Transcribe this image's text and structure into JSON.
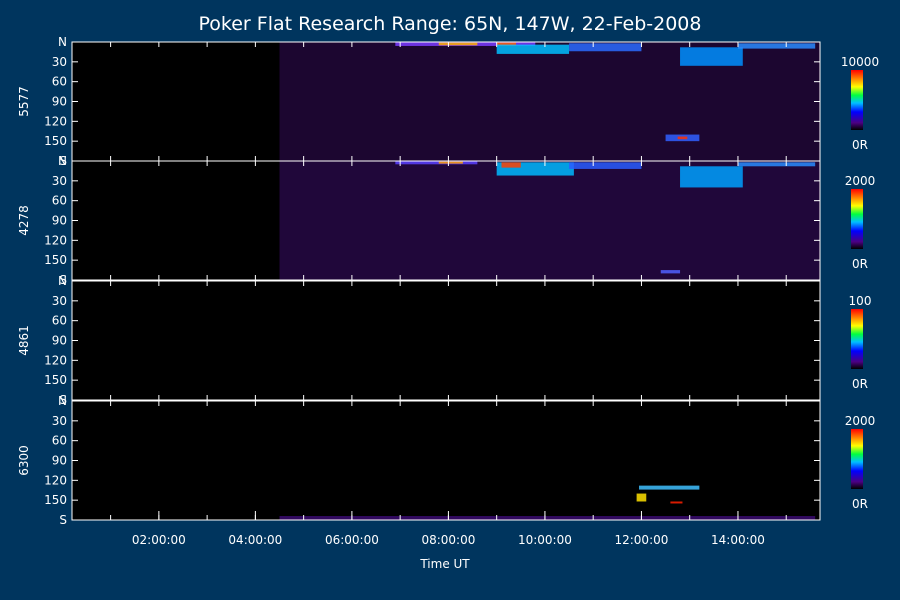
{
  "chart_data": {
    "type": "heatmap",
    "title": "Poker Flat Research Range: 65N, 147W, 22-Feb-2008",
    "xlabel": "Time UT",
    "x_unit": "hours UT",
    "x_range": [
      0.2,
      15.7
    ],
    "x_ticks": [
      {
        "value": 2,
        "label": "02:00:00"
      },
      {
        "value": 4,
        "label": "04:00:00"
      },
      {
        "value": 6,
        "label": "06:00:00"
      },
      {
        "value": 8,
        "label": "08:00:00"
      },
      {
        "value": 10,
        "label": "10:00:00"
      },
      {
        "value": 12,
        "label": "12:00:00"
      },
      {
        "value": 14,
        "label": "14:00:00"
      }
    ],
    "y_range": [
      0,
      180
    ],
    "y_ticks": [
      {
        "value": 0,
        "label": "N"
      },
      {
        "value": 30,
        "label": "30"
      },
      {
        "value": 60,
        "label": "60"
      },
      {
        "value": 90,
        "label": "90"
      },
      {
        "value": 120,
        "label": "120"
      },
      {
        "value": 150,
        "label": "150"
      },
      {
        "value": 180,
        "label": "S"
      }
    ],
    "data_start_hour": 4.5,
    "panels": [
      {
        "wavelength": "5577",
        "cbar_max": "10000",
        "cbar_min": "0R",
        "background": "#1c0630",
        "features": [
          {
            "t0": 6.9,
            "t1": 9.8,
            "a0": 0,
            "a1": 6,
            "color": "#7a3cff"
          },
          {
            "t0": 7.8,
            "t1": 8.6,
            "a0": 1,
            "a1": 5,
            "color": "#ffb000"
          },
          {
            "t0": 9.0,
            "t1": 9.4,
            "a0": 1,
            "a1": 6,
            "color": "#ff6000"
          },
          {
            "t0": 9.0,
            "t1": 10.5,
            "a0": 4,
            "a1": 18,
            "color": "#00c0ff"
          },
          {
            "t0": 10.5,
            "t1": 12.0,
            "a0": 2,
            "a1": 14,
            "color": "#2a6cff"
          },
          {
            "t0": 12.8,
            "t1": 14.1,
            "a0": 8,
            "a1": 36,
            "color": "#0090ff"
          },
          {
            "t0": 14.0,
            "t1": 15.6,
            "a0": 2,
            "a1": 10,
            "color": "#2a8cff"
          },
          {
            "t0": 12.5,
            "t1": 13.2,
            "a0": 140,
            "a1": 150,
            "color": "#3060ff"
          },
          {
            "t0": 12.75,
            "t1": 12.95,
            "a0": 143,
            "a1": 147,
            "color": "#ff3000"
          }
        ]
      },
      {
        "wavelength": "4278",
        "cbar_max": "2000",
        "cbar_min": "0R",
        "background": "#20073a",
        "features": [
          {
            "t0": 6.9,
            "t1": 8.6,
            "a0": 0,
            "a1": 5,
            "color": "#5a40ff"
          },
          {
            "t0": 7.8,
            "t1": 8.3,
            "a0": 1,
            "a1": 4,
            "color": "#ffa000"
          },
          {
            "t0": 9.0,
            "t1": 10.6,
            "a0": 2,
            "a1": 22,
            "color": "#00b8ff"
          },
          {
            "t0": 9.1,
            "t1": 9.5,
            "a0": 2,
            "a1": 10,
            "color": "#ff4000"
          },
          {
            "t0": 10.5,
            "t1": 12.0,
            "a0": 2,
            "a1": 12,
            "color": "#2a5cff"
          },
          {
            "t0": 12.8,
            "t1": 14.1,
            "a0": 8,
            "a1": 40,
            "color": "#00a0ff"
          },
          {
            "t0": 14.0,
            "t1": 15.6,
            "a0": 2,
            "a1": 8,
            "color": "#2a8cff"
          },
          {
            "t0": 12.4,
            "t1": 12.8,
            "a0": 165,
            "a1": 170,
            "color": "#5060ff"
          }
        ]
      },
      {
        "wavelength": "4861",
        "cbar_max": "100",
        "cbar_min": "0R",
        "background": "#000000",
        "features": []
      },
      {
        "wavelength": "6300",
        "cbar_max": "2000",
        "cbar_min": "0R",
        "background": "#000000",
        "features": [
          {
            "t0": 4.5,
            "t1": 15.6,
            "a0": 174,
            "a1": 180,
            "color": "#3a0a70"
          },
          {
            "t0": 11.95,
            "t1": 13.2,
            "a0": 128,
            "a1": 134,
            "color": "#40c0ff"
          },
          {
            "t0": 11.9,
            "t1": 12.1,
            "a0": 140,
            "a1": 152,
            "color": "#ffe000"
          },
          {
            "t0": 12.6,
            "t1": 12.85,
            "a0": 152,
            "a1": 155,
            "color": "#ff2000"
          }
        ]
      }
    ]
  }
}
